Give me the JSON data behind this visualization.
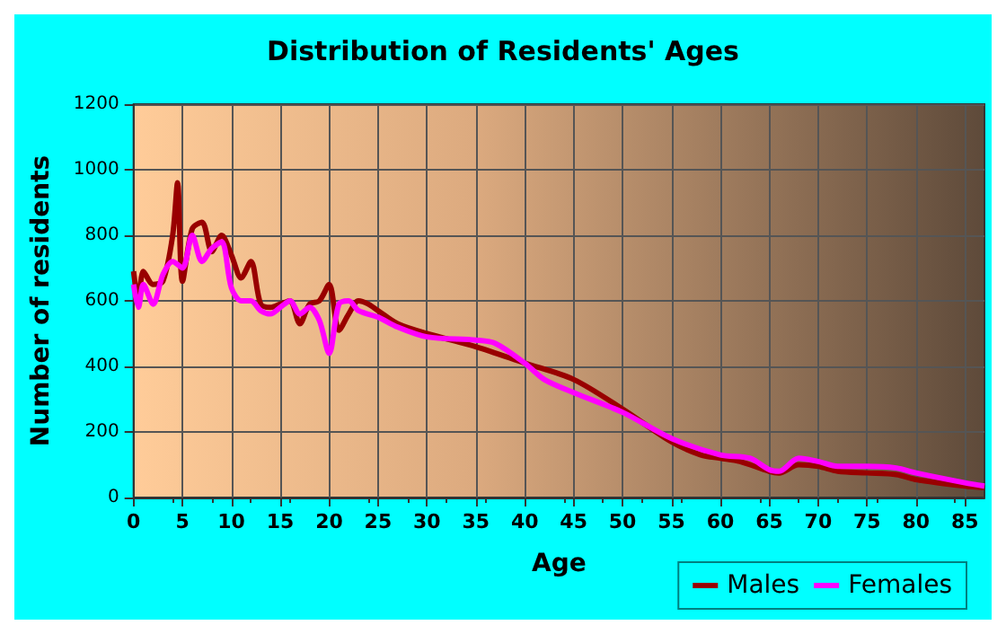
{
  "chart_data": {
    "type": "line",
    "title": "Distribution of Residents' Ages",
    "xlabel": "Age",
    "ylabel": "Number of residents",
    "xlim": [
      0,
      87
    ],
    "xticks": [
      0,
      5,
      10,
      15,
      20,
      25,
      30,
      35,
      40,
      45,
      50,
      55,
      60,
      65,
      70,
      75,
      80,
      85
    ],
    "ylim": [
      0,
      1200
    ],
    "yticks": [
      0,
      200,
      400,
      600,
      800,
      1000,
      1200
    ],
    "grid": true,
    "legend": "bottom right",
    "marker": "none",
    "line_style": "solid",
    "series": [
      {
        "name": "Males",
        "color": "#990000",
        "x": [
          0,
          0.5,
          1,
          2,
          3,
          4,
          4.5,
          5,
          6,
          7,
          8,
          9,
          10,
          11,
          12,
          13,
          14,
          15,
          16,
          17,
          18,
          19,
          20,
          21,
          22,
          23,
          24,
          25,
          27,
          30,
          35,
          40,
          45,
          50,
          55,
          58,
          60,
          62,
          65,
          66,
          68,
          70,
          72,
          75,
          78,
          80,
          85,
          87
        ],
        "values": [
          690,
          600,
          690,
          650,
          660,
          800,
          960,
          660,
          820,
          840,
          750,
          800,
          740,
          670,
          720,
          590,
          580,
          590,
          600,
          530,
          590,
          600,
          650,
          510,
          560,
          600,
          590,
          570,
          530,
          500,
          460,
          410,
          360,
          270,
          170,
          130,
          120,
          110,
          80,
          75,
          100,
          95,
          80,
          75,
          70,
          55,
          35,
          30
        ]
      },
      {
        "name": "Females",
        "color": "#ff00ff",
        "x": [
          0,
          0.5,
          1,
          2,
          3,
          4,
          5,
          6,
          7,
          8,
          9,
          10,
          11,
          12,
          13,
          14,
          15,
          16,
          17,
          18,
          19,
          20,
          21,
          22,
          23,
          25,
          27,
          30,
          35,
          37,
          40,
          42,
          45,
          50,
          55,
          60,
          63,
          65,
          66,
          68,
          70,
          72,
          75,
          78,
          80,
          85,
          87
        ],
        "values": [
          650,
          580,
          650,
          590,
          680,
          720,
          700,
          800,
          720,
          760,
          780,
          640,
          600,
          600,
          570,
          560,
          580,
          600,
          560,
          580,
          540,
          440,
          590,
          600,
          570,
          550,
          520,
          490,
          480,
          470,
          410,
          360,
          320,
          260,
          180,
          130,
          120,
          85,
          80,
          120,
          110,
          95,
          95,
          90,
          75,
          45,
          35
        ]
      }
    ]
  }
}
